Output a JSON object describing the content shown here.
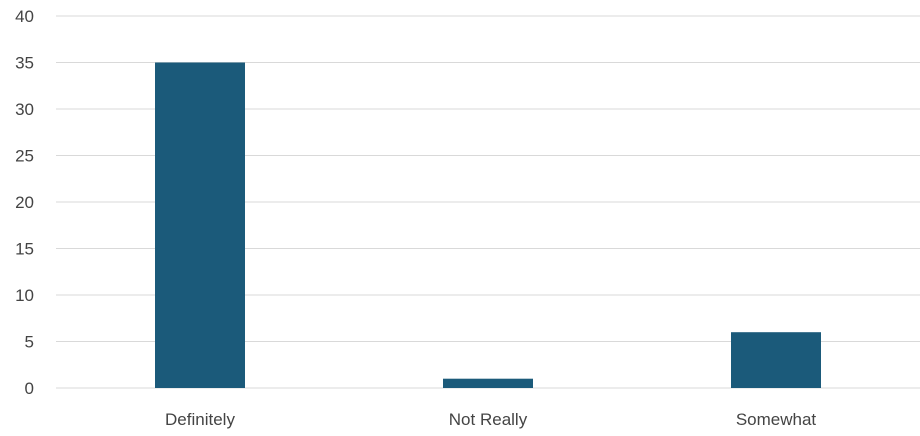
{
  "chart_data": {
    "type": "bar",
    "categories": [
      "Definitely",
      "Not Really",
      "Somewhat"
    ],
    "values": [
      35,
      1,
      6
    ],
    "title": "",
    "xlabel": "",
    "ylabel": "",
    "ylim": [
      0,
      40
    ],
    "yticks": [
      0,
      5,
      10,
      15,
      20,
      25,
      30,
      35,
      40
    ],
    "grid": true,
    "legend": "none",
    "bar_color": "#1b5a7a"
  }
}
